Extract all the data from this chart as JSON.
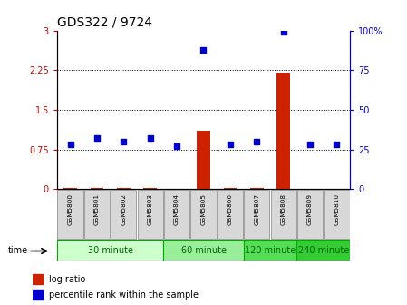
{
  "title": "GDS322 / 9724",
  "samples": [
    "GSM5800",
    "GSM5801",
    "GSM5802",
    "GSM5803",
    "GSM5804",
    "GSM5805",
    "GSM5806",
    "GSM5807",
    "GSM5808",
    "GSM5809",
    "GSM5810"
  ],
  "log_ratio": [
    0.02,
    0.02,
    0.02,
    0.02,
    0.01,
    1.1,
    0.02,
    0.02,
    2.2,
    0.01,
    0.01
  ],
  "percentile": [
    28,
    32,
    30,
    32,
    27,
    88,
    28,
    30,
    99,
    28,
    28
  ],
  "groups": [
    {
      "label": "30 minute",
      "indices": [
        0,
        1,
        2,
        3
      ],
      "color": "#ccffcc"
    },
    {
      "label": "60 minute",
      "indices": [
        4,
        5,
        6
      ],
      "color": "#99ee99"
    },
    {
      "label": "120 minute",
      "indices": [
        7,
        8
      ],
      "color": "#55dd55"
    },
    {
      "label": "240 minute",
      "indices": [
        9,
        10
      ],
      "color": "#33cc33"
    }
  ],
  "left_color": "#cc0000",
  "right_color": "#0000cc",
  "ylim_left": [
    0,
    3
  ],
  "ylim_right": [
    0,
    100
  ],
  "yticks_left": [
    0,
    0.75,
    1.5,
    2.25,
    3
  ],
  "yticks_right": [
    0,
    25,
    50,
    75,
    100
  ],
  "ytick_labels_left": [
    "0",
    "0.75",
    "1.5",
    "2.25",
    "3"
  ],
  "ytick_labels_right": [
    "0",
    "25",
    "50",
    "75",
    "100%"
  ],
  "hlines": [
    0.75,
    1.5,
    2.25
  ],
  "bar_color": "#cc2200",
  "dot_color": "#0000cc",
  "legend_log": "log ratio",
  "legend_pct": "percentile rank within the sample",
  "time_label": "time",
  "group_border_color": "#00aa00",
  "group_text_color": "#006600"
}
